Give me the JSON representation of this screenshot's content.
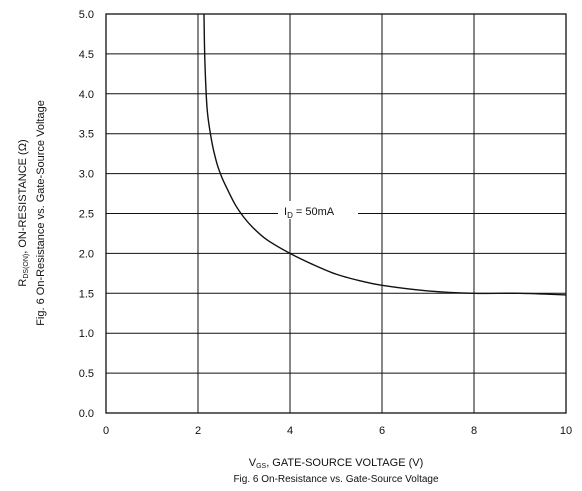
{
  "figure": {
    "caption": "Fig. 6  On-Resistance vs. Gate-Source Voltage"
  },
  "chart_data": {
    "type": "line",
    "title": "",
    "caption": "Fig. 6  On-Resistance vs. Gate-Source Voltage",
    "xlabel": {
      "symbol": "V",
      "subscript": "GS",
      "text": ", GATE-SOURCE VOLTAGE (V)"
    },
    "ylabel": {
      "symbol": "R",
      "subscript": "DS(ON)",
      "text": ", ON-RESISTANCE (Ω)",
      "secondary": "Fig. 6  On-Resistance vs. Gate-Source Voltage"
    },
    "xlim": [
      0,
      10
    ],
    "ylim": [
      0,
      5
    ],
    "x_ticks": [
      "0",
      "2",
      "4",
      "6",
      "8",
      "10"
    ],
    "y_ticks": [
      "0.0",
      "0.5",
      "1.0",
      "1.5",
      "2.0",
      "2.5",
      "3.0",
      "3.5",
      "4.0",
      "4.5",
      "5.0"
    ],
    "grid": true,
    "series": [
      {
        "label": {
          "symbol": "I",
          "subscript": "D",
          "text": " = 50mA"
        },
        "label_at": [
          3.8,
          2.5
        ],
        "x": [
          2.13,
          2.15,
          2.2,
          2.3,
          2.4,
          2.5,
          2.6,
          2.8,
          3.0,
          3.2,
          3.5,
          4.0,
          4.5,
          5.0,
          5.5,
          6.0,
          7.0,
          8.0,
          9.0,
          10.0
        ],
        "y": [
          5.0,
          4.4,
          3.8,
          3.4,
          3.15,
          2.98,
          2.85,
          2.62,
          2.45,
          2.32,
          2.17,
          2.0,
          1.86,
          1.74,
          1.66,
          1.6,
          1.53,
          1.5,
          1.5,
          1.48
        ]
      }
    ]
  }
}
